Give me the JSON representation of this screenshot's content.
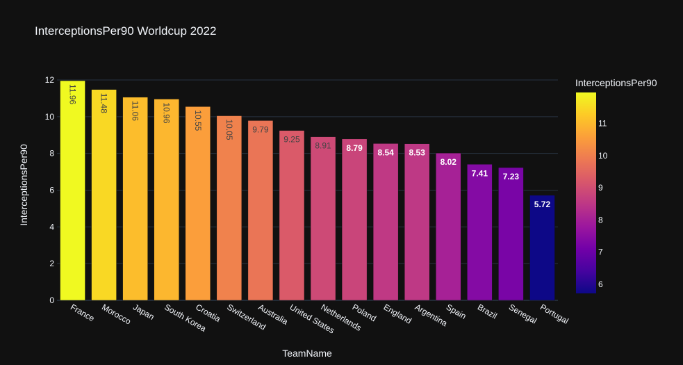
{
  "chart_data": {
    "type": "bar",
    "title": "InterceptionsPer90 Worldcup 2022",
    "xlabel": "TeamName",
    "ylabel": "InterceptionsPer90",
    "categories": [
      "France",
      "Morocco",
      "Japan",
      "South Korea",
      "Croatia",
      "Switzerland",
      "Australia",
      "United States",
      "Netherlands",
      "Poland",
      "England",
      "Argentina",
      "Spain",
      "Brazil",
      "Senegal",
      "Portugal"
    ],
    "values": [
      11.96,
      11.48,
      11.06,
      10.96,
      10.55,
      10.05,
      9.79,
      9.25,
      8.91,
      8.79,
      8.54,
      8.53,
      8.02,
      7.41,
      7.23,
      5.72
    ],
    "value_labels": [
      "11.96",
      "11.48",
      "11.06",
      "10.96",
      "10.55",
      "10.05",
      "9.79",
      "9.25",
      "8.91",
      "8.79",
      "8.54",
      "8.53",
      "8.02",
      "7.41",
      "7.23",
      "5.72"
    ],
    "ylim": [
      0,
      12
    ],
    "yticks": [
      0,
      2,
      4,
      6,
      8,
      10,
      12
    ],
    "grid": true,
    "colorbar": {
      "title": "InterceptionsPer90",
      "range": [
        5.72,
        11.96
      ],
      "ticks": [
        6,
        7,
        8,
        9,
        10,
        11
      ]
    },
    "colorscale": [
      "#0d0887",
      "#46039f",
      "#7201a8",
      "#9c179e",
      "#bd3786",
      "#d8576b",
      "#ed7953",
      "#fb9f3a",
      "#fdca26",
      "#f0f921"
    ],
    "colors": {
      "background": "#111111",
      "grid": "#283442",
      "text": "#f2f5fa"
    }
  }
}
